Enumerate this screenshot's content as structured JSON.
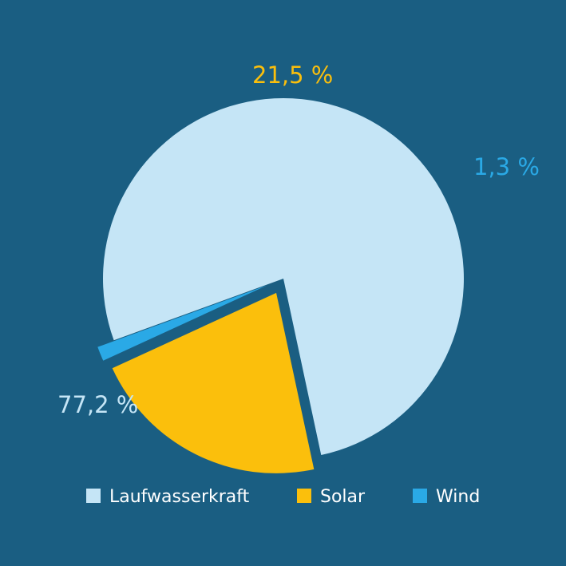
{
  "background_color": "#1a5e82",
  "chart_data": {
    "type": "pie",
    "title": "",
    "slices": [
      {
        "name": "Laufwasserkraft",
        "value": 77.2,
        "label": "77,2 %",
        "color": "#c5e5f6",
        "label_color": "#c5e5f6"
      },
      {
        "name": "Solar",
        "value": 21.5,
        "label": "21,5 %",
        "color": "#fbbf0c",
        "label_color": "#fbbf0c"
      },
      {
        "name": "Wind",
        "value": 1.3,
        "label": "1,3 %",
        "color": "#2aa9e6",
        "label_color": "#2aa9e6"
      }
    ],
    "legend_position": "bottom",
    "exploded": true
  }
}
